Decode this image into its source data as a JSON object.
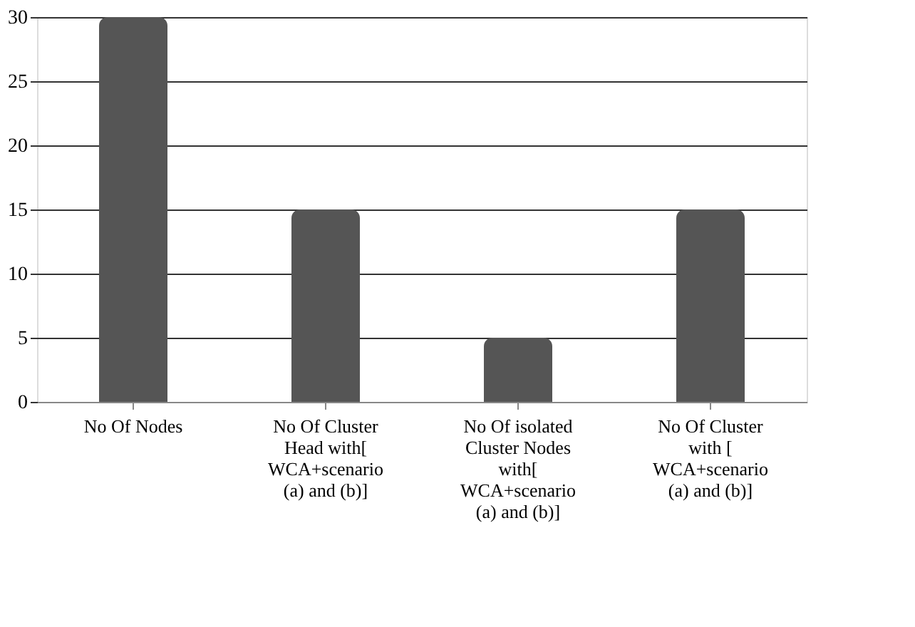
{
  "chart_data": {
    "type": "bar",
    "categories": [
      "No Of Nodes",
      "No Of Cluster Head with[ WCA+scenario (a) and (b)]",
      "No Of isolated Cluster Nodes with[ WCA+scenario (a) and (b)]",
      "No Of Cluster with [ WCA+scenario (a) and (b)]"
    ],
    "values": [
      30,
      15,
      5,
      15
    ],
    "color": "#555555",
    "ylim": [
      0,
      30
    ],
    "yticks": [
      0,
      5,
      10,
      15,
      20,
      25,
      30
    ],
    "grid": "y"
  }
}
